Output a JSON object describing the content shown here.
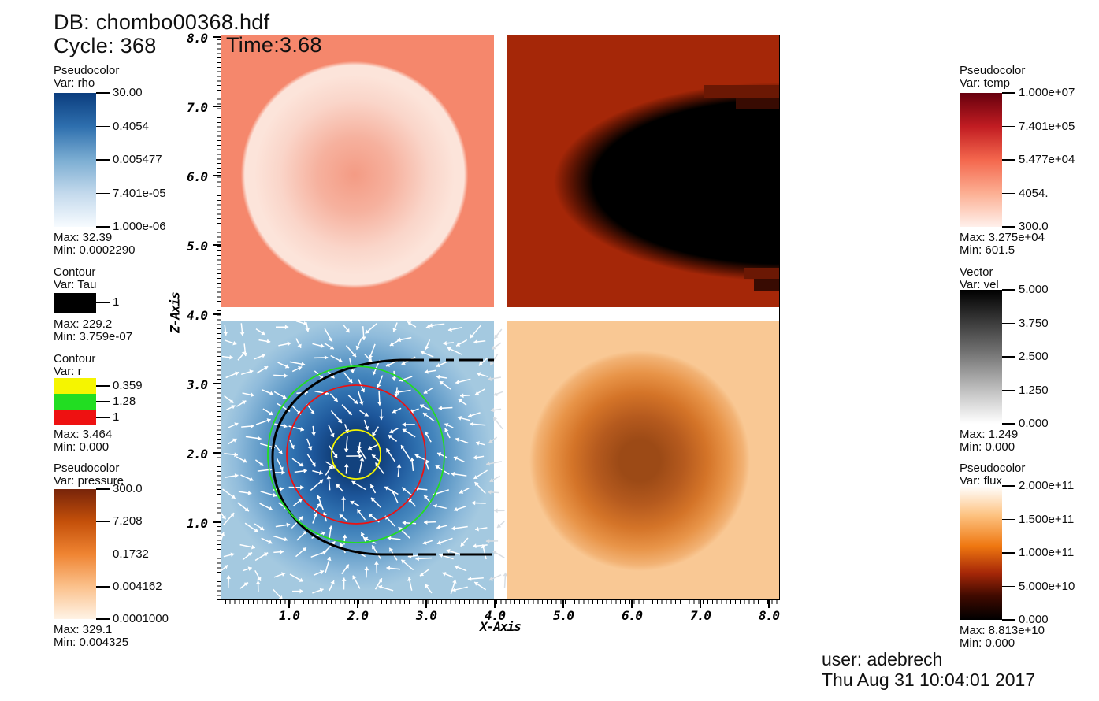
{
  "header": {
    "db_line": "DB: chombo00368.hdf",
    "cycle_line": "Cycle: 368",
    "time_line": "Time:3.68"
  },
  "footer": {
    "user_line": "user: adebrech",
    "timestamp_line": "Thu Aug 31 10:04:01 2017"
  },
  "axes": {
    "x_label": "X-Axis",
    "z_label": "Z-Axis",
    "x_ticks": [
      "1.0",
      "2.0",
      "3.0",
      "4.0",
      "5.0",
      "6.0",
      "7.0",
      "8.0"
    ],
    "z_ticks": [
      "8.0",
      "7.0",
      "6.0",
      "5.0",
      "4.0",
      "3.0",
      "2.0",
      "1.0"
    ]
  },
  "legends": {
    "rho": {
      "kind": "Pseudocolor",
      "var": "Var: rho",
      "ticks": [
        "30.00",
        "0.4054",
        "0.005477",
        "7.401e-05",
        "1.000e-06"
      ],
      "max": "Max: 32.39",
      "min": "Min: 0.0002290",
      "gradient": [
        "#0b3d7e 0%",
        "#2e6fae 25%",
        "#7badd2 50%",
        "#c3d9ec 75%",
        "#f7fbff 100%"
      ]
    },
    "tau": {
      "kind": "Contour",
      "var": "Var: Tau",
      "ticks": [
        "1"
      ],
      "max": "Max: 229.2",
      "min": "Min: 3.759e-07",
      "swatch": "#000000"
    },
    "r": {
      "kind": "Contour",
      "var": "Var: r",
      "ticks": [
        "0.359",
        "1.28",
        "1"
      ],
      "max": "Max: 3.464",
      "min": "Min: 0.000",
      "swatches": [
        "#f5f500",
        "#22dd22",
        "#ee1111"
      ]
    },
    "pressure": {
      "kind": "Pseudocolor",
      "var": "Var: pressure",
      "ticks": [
        "300.0",
        "7.208",
        "0.1732",
        "0.004162",
        "0.0001000"
      ],
      "max": "Max: 329.1",
      "min": "Min: 0.004325",
      "gradient": [
        "#78240a 0%",
        "#c4500a 25%",
        "#ef8432 50%",
        "#fbc18c 75%",
        "#fff3e6 100%"
      ]
    },
    "temp": {
      "kind": "Pseudocolor",
      "var": "Var: temp",
      "ticks": [
        "1.000e+07",
        "7.401e+05",
        "5.477e+04",
        "4054.",
        "300.0"
      ],
      "max": "Max: 3.275e+04",
      "min": "Min: 601.5",
      "gradient": [
        "#67000d 0%",
        "#c11c22 25%",
        "#f4674d 50%",
        "#fcaf93 75%",
        "#fff0eb 100%"
      ]
    },
    "vel": {
      "kind": "Vector",
      "var": "Var: vel",
      "ticks": [
        "5.000",
        "3.750",
        "2.500",
        "1.250",
        "0.000"
      ],
      "max": "Max: 1.249",
      "min": "Min: 0.000",
      "gradient": [
        "#000000 0%",
        "#6e6e6e 45%",
        "#c8c8c8 78%",
        "#ffffff 100%"
      ]
    },
    "flux": {
      "kind": "Pseudocolor",
      "var": "Var: flux",
      "ticks": [
        "2.000e+11",
        "1.500e+11",
        "1.000e+11",
        "5.000e+10",
        "0.000"
      ],
      "max": "Max: 8.813e+10",
      "min": "Min: 0.000",
      "gradient": [
        "#ffffff 0%",
        "#fdc280 22%",
        "#ef7710 45%",
        "#a62708 65%",
        "#400a00 82%",
        "#000000 100%"
      ]
    }
  },
  "chart_data": {
    "type": "heatmap",
    "title": "VisIt multi-field rendering of chombo00368.hdf, cycle 368, time 3.68",
    "xlabel": "X-Axis",
    "ylabel": "Z-Axis",
    "x_range": [
      0,
      8.2
    ],
    "z_range": [
      0,
      8.2
    ],
    "grid": false,
    "panels": [
      {
        "quadrant": "top-left",
        "variable": "temp",
        "scale": "log",
        "scale_range": [
          300,
          10000000
        ],
        "max": 32750,
        "min": 601.5,
        "description": "salmon temperature field with lighter circular shell centered near (2.0, 6.3), radius ~1.7",
        "colors": {
          "background": "#f5876c",
          "shell": "#fce4da",
          "center": "#f49b84"
        }
      },
      {
        "quadrant": "top-right",
        "variable": "flux",
        "scale": "linear",
        "scale_range": [
          0,
          200000000000
        ],
        "max": 88130000000,
        "min": 0,
        "description": "dark brick-red flux field with black half-ellipse lobe attached to right edge near z=6.1, half-width ~3.4, half-height ~1.5, blocky stepped boundary",
        "colors": {
          "background": "#a52708",
          "lobe": "#000000"
        }
      },
      {
        "quadrant": "bottom-left",
        "variable": "rho",
        "scale": "log",
        "scale_range": [
          1e-06,
          30
        ],
        "max": 32.39,
        "min": 0.000229,
        "description": "light-blue density field with concentric darker halo and navy core centered at (2.0, 2.0); core radius ~0.4, halo radius ~1.8; overlaid with white velocity vectors and contour circles",
        "colors": {
          "background": "#a4c9e0",
          "core": "#12427e"
        }
      },
      {
        "quadrant": "bottom-right",
        "variable": "pressure",
        "scale": "log",
        "scale_range": [
          0.0001,
          300
        ],
        "max": 329.1,
        "min": 0.004325,
        "description": "peach pressure field with dark-orange radial blob centered near (6.1, 2.2), radius ~1.6",
        "colors": {
          "background": "#f9c894",
          "core": "#9c4a16"
        }
      }
    ],
    "contours": [
      {
        "variable": "Tau",
        "value": 1,
        "color": "#000000",
        "shape": "C-shaped curve of radius ~1.4 around (1.9, 2.05) opening rightward, with dashed horizontal tails at z=3.47 and z=0.53 extending to x=4.2"
      },
      {
        "variable": "r",
        "value": 0.359,
        "color": "#f5f500",
        "shape": "circle centered (2.0, 2.0), radius 0.359"
      },
      {
        "variable": "r",
        "value": 1,
        "color": "#ee1111",
        "shape": "circle centered (2.0, 2.0), radius 1.0"
      },
      {
        "variable": "r",
        "value": 1.28,
        "color": "#22dd22",
        "shape": "circle centered (2.0, 2.0), radius 1.28"
      }
    ],
    "vectors": {
      "variable": "vel",
      "color": "#ffffff",
      "max": 1.249,
      "min": 0,
      "description": "white arrows converging toward (2.0, 2.0) with mild swirl, covering the bottom-left quadrant"
    }
  }
}
